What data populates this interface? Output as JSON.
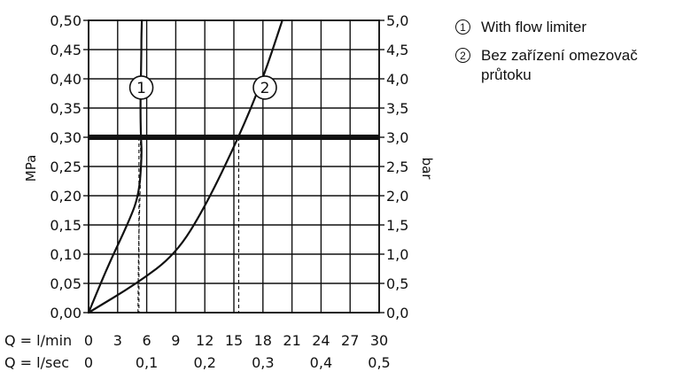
{
  "chart_data": {
    "type": "line",
    "left_axis": {
      "label": "MPa",
      "range": [
        0,
        0.5
      ],
      "ticks": [
        "0,00",
        "0,05",
        "0,10",
        "0,15",
        "0,20",
        "0,25",
        "0,30",
        "0,35",
        "0,40",
        "0,45",
        "0,50"
      ]
    },
    "right_axis": {
      "label": "bar",
      "range": [
        0,
        5
      ],
      "ticks": [
        "0,0",
        "0,5",
        "1,0",
        "1,5",
        "2,0",
        "2,5",
        "3,0",
        "3,5",
        "4,0",
        "4,5",
        "5,0"
      ]
    },
    "x_axis": {
      "range": [
        0,
        30
      ],
      "row1_label": "Q = l/min",
      "row1_ticks": [
        "0",
        "3",
        "6",
        "9",
        "12",
        "15",
        "18",
        "21",
        "24",
        "27",
        "30"
      ],
      "row2_label": "Q = l/sec",
      "row2_ticks": [
        "0",
        "0,1",
        "0,2",
        "0,3",
        "0,4",
        "0,5"
      ]
    },
    "grid": true,
    "reference_line": {
      "y": 0.3
    },
    "series": [
      {
        "marker": "1",
        "name": "With flow limiter",
        "x": [
          0,
          2,
          4,
          5.2,
          5.5,
          5.4,
          5.35,
          5.4,
          5.45,
          5.45,
          5.5
        ],
        "y": [
          0,
          0.08,
          0.15,
          0.2,
          0.27,
          0.3,
          0.35,
          0.4,
          0.45,
          0.47,
          0.5
        ]
      },
      {
        "marker": "2",
        "name": "Bez zařízení omezovač průtoku",
        "x": [
          0,
          5,
          9,
          12,
          15.5,
          18,
          20
        ],
        "y": [
          0,
          0.05,
          0.1,
          0.18,
          0.3,
          0.4,
          0.5
        ]
      }
    ],
    "dashed_guides": [
      {
        "series": "1",
        "x": 5.2,
        "y": 0.3,
        "curve": [
          [
            5.1,
            0.0
          ],
          [
            5.15,
            0.1
          ],
          [
            5.3,
            0.2
          ],
          [
            5.4,
            0.25
          ],
          [
            5.35,
            0.3
          ]
        ]
      },
      {
        "series": "2",
        "x": 15.5,
        "y": 0.3
      }
    ]
  },
  "legend": [
    {
      "marker": "①",
      "text": "With flow limiter"
    },
    {
      "marker": "②",
      "text": "Bez zařízení omezovač průtoku"
    }
  ]
}
